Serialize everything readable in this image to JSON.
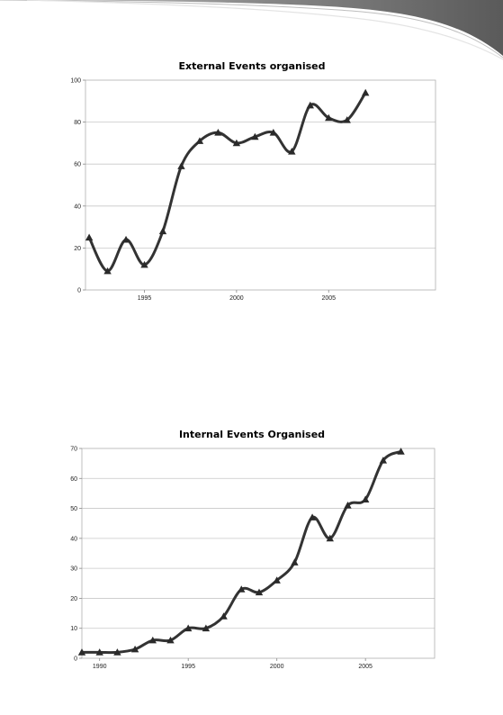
{
  "chart_data": [
    {
      "type": "line",
      "title": "External Events organised",
      "xlabel": "",
      "ylabel": "",
      "xlim": [
        1991.8,
        2010.8
      ],
      "ylim": [
        0,
        100
      ],
      "y_ticks": [
        0,
        20,
        40,
        60,
        80,
        100
      ],
      "x_ticks": [
        1995,
        2000,
        2005
      ],
      "grid": "horizontal",
      "legend": "none",
      "line_color": "#333333",
      "series": [
        {
          "x": [
            1992,
            1993,
            1994,
            1995,
            1996,
            1997,
            1998,
            1999,
            2000,
            2001,
            2002,
            2003,
            2004,
            2005,
            2006,
            2007
          ],
          "values": [
            25,
            9,
            24,
            12,
            28,
            59,
            71,
            75,
            70,
            73,
            75,
            66,
            88,
            82,
            81,
            94
          ]
        }
      ]
    },
    {
      "type": "line",
      "title": "Internal Events Organised",
      "xlabel": "",
      "ylabel": "",
      "xlim": [
        1989,
        2008.9
      ],
      "ylim": [
        0,
        70
      ],
      "y_ticks": [
        0,
        10,
        20,
        30,
        40,
        50,
        60,
        70
      ],
      "x_ticks": [
        1990,
        1995,
        2000,
        2005
      ],
      "grid": "horizontal",
      "legend": "none",
      "line_color": "#333333",
      "series": [
        {
          "x": [
            1989,
            1990,
            1991,
            1992,
            1993,
            1994,
            1995,
            1996,
            1997,
            1998,
            1999,
            2000,
            2001,
            2002,
            2003,
            2004,
            2005,
            2006,
            2007
          ],
          "values": [
            2,
            2,
            2,
            3,
            6,
            6,
            10,
            10,
            14,
            23,
            22,
            26,
            32,
            47,
            40,
            51,
            53,
            66,
            69
          ]
        }
      ]
    }
  ]
}
